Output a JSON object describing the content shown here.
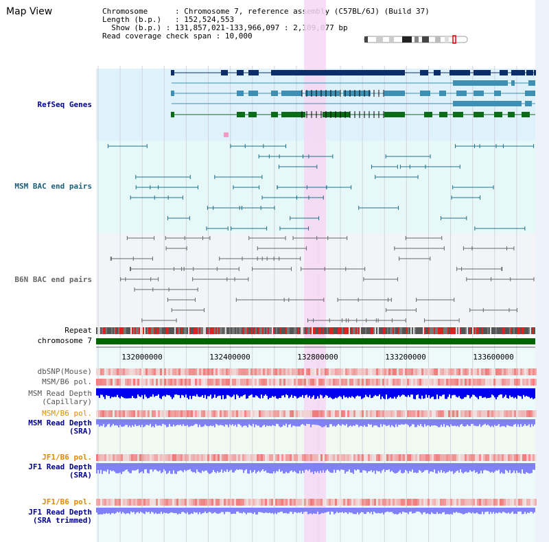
{
  "header": {
    "title": "Map View",
    "chromosome_key": "Chromosome",
    "chromosome_value": "Chromosome 7, reference assembly (C57BL/6J) (Build 37)",
    "length_key": "Length (b.p.)",
    "length_value": "152,524,553",
    "show_key": "Show (b.p.)",
    "show_value": "131,857,021-133,966,097 : 2,109,077 bp",
    "coverage_key": "Read coverage check span",
    "coverage_value": "10,000"
  },
  "tracks": {
    "refseq": "RefSeq Genes",
    "msm_bac": "MSM BAC end pairs",
    "b6n_bac": "B6N BAC end pairs",
    "repeat": "Repeat",
    "chromosome": "chromosome 7",
    "dbsnp": "dbSNP(Mouse)",
    "msm_b6_pol_1": "MSM/B6 pol.",
    "msm_depth_cap_1": "MSM Read Depth",
    "msm_depth_cap_2": "(Capillary)",
    "msm_b6_pol_2": "MSM/B6 pol.",
    "msm_depth_sra_1": "MSM Read Depth",
    "msm_depth_sra_2": "(SRA)",
    "jf1_b6_pol_1": "JF1/B6 pol.",
    "jf1_depth_sra_1": "JF1 Read Depth",
    "jf1_depth_sra_2": "(SRA)",
    "jf1_b6_pol_2": "JF1/B6 pol.",
    "jf1_depth_trim_1": "JF1 Read Depth",
    "jf1_depth_trim_2": "(SRA trimmed)"
  },
  "axis": {
    "ticks": [
      "132000000",
      "132400000",
      "132800000",
      "133200000",
      "133600000"
    ]
  },
  "colors": {
    "refseq_bg": "#dff1fa",
    "msm_bac_bg": "#e6f8f8",
    "b6n_bac_bg": "#f3f4f8",
    "highlight": "#f6d7f3",
    "chromosome": "#006400",
    "navy": "#0b2e6b",
    "steel": "#3d8fb4",
    "green": "#0b6b18",
    "bac_teal": "#1f6f8a",
    "bac_gray": "#666666",
    "snp": "#f07070",
    "depth_dark": "#0000ee",
    "depth_light": "#8080f8",
    "label_blue": "#00008b",
    "label_teal": "#1a5e7a",
    "label_orange": "#e08a00"
  }
}
